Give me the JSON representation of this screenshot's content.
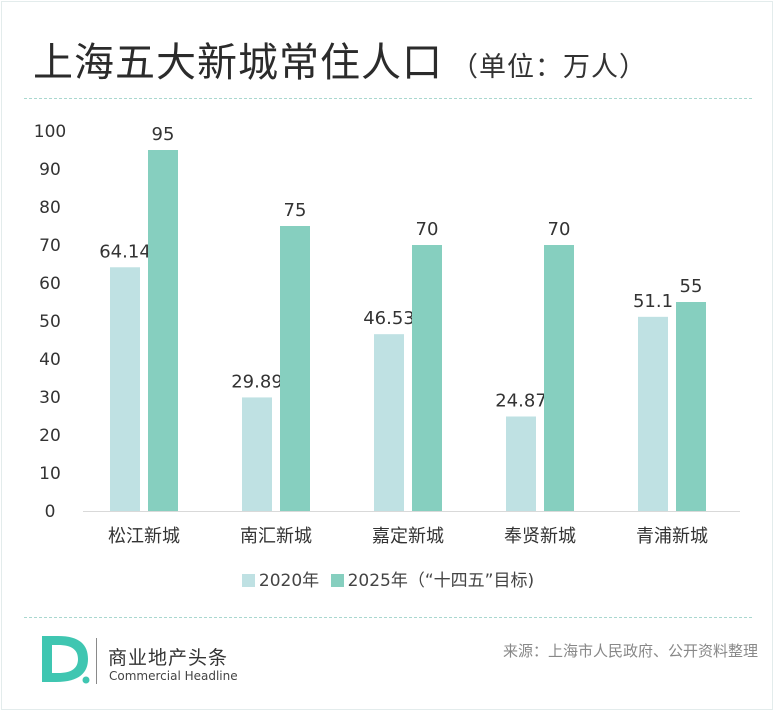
{
  "header": {
    "title": "上海五大新城常住人口",
    "unit": "（单位：万人）"
  },
  "legend": {
    "items": [
      {
        "label": "2020年",
        "color": "#bfe1e3"
      },
      {
        "label": "2025年（“十四五”目标)",
        "color": "#86cfbf"
      }
    ]
  },
  "footer": {
    "brand_cn": "商业地产头条",
    "brand_en": "Commercial Headline",
    "source": "来源：上海市人民政府、公开资料整理"
  },
  "colors": {
    "series_2020": "#bfe1e3",
    "series_2025": "#86cfbf",
    "axis": "#d9d9d9",
    "accent": "#3fc6b1"
  },
  "chart_data": {
    "type": "bar",
    "title": "上海五大新城常住人口",
    "subtitle": "（单位：万人）",
    "categories": [
      "松江新城",
      "南汇新城",
      "嘉定新城",
      "奉贤新城",
      "青浦新城"
    ],
    "series": [
      {
        "name": "2020年",
        "values": [
          64.14,
          29.89,
          46.53,
          24.87,
          51.1
        ],
        "labels": [
          "64.14",
          "29.89",
          "46.53",
          "24.87",
          "51.1"
        ]
      },
      {
        "name": "2025年（“十四五”目标)",
        "values": [
          95,
          75,
          70,
          70,
          55
        ],
        "labels": [
          "95",
          "75",
          "70",
          "70",
          "55"
        ]
      }
    ],
    "yticks": [
      "0",
      "10",
      "20",
      "30",
      "40",
      "50",
      "60",
      "70",
      "80",
      "90",
      "100"
    ],
    "ylim": [
      0,
      100
    ],
    "grid": false,
    "legend_position": "bottom"
  }
}
